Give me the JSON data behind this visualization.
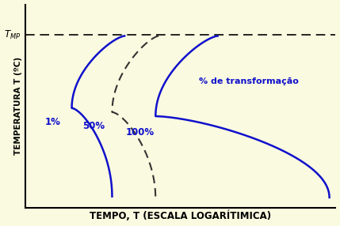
{
  "background_color": "#FAFAE0",
  "figure_background_color": "#FAFAE0",
  "xlabel": "TEMPO, T (ESCALA LOGARÍTIMICA)",
  "ylabel": "TEMPERATURA T (ºC)",
  "xlabel_fontsize": 8.5,
  "ylabel_fontsize": 7.5,
  "curve_color": "#1010CC",
  "dashed_color": "#333333",
  "label_1": "1%",
  "label_50": "50%",
  "label_100": "100%",
  "annotation": "% de transformação",
  "annotation_fontsize": 8,
  "label_fontsize": 8.5,
  "tmp_y": 8.5,
  "xlim": [
    0,
    10
  ],
  "ylim": [
    0,
    10
  ]
}
